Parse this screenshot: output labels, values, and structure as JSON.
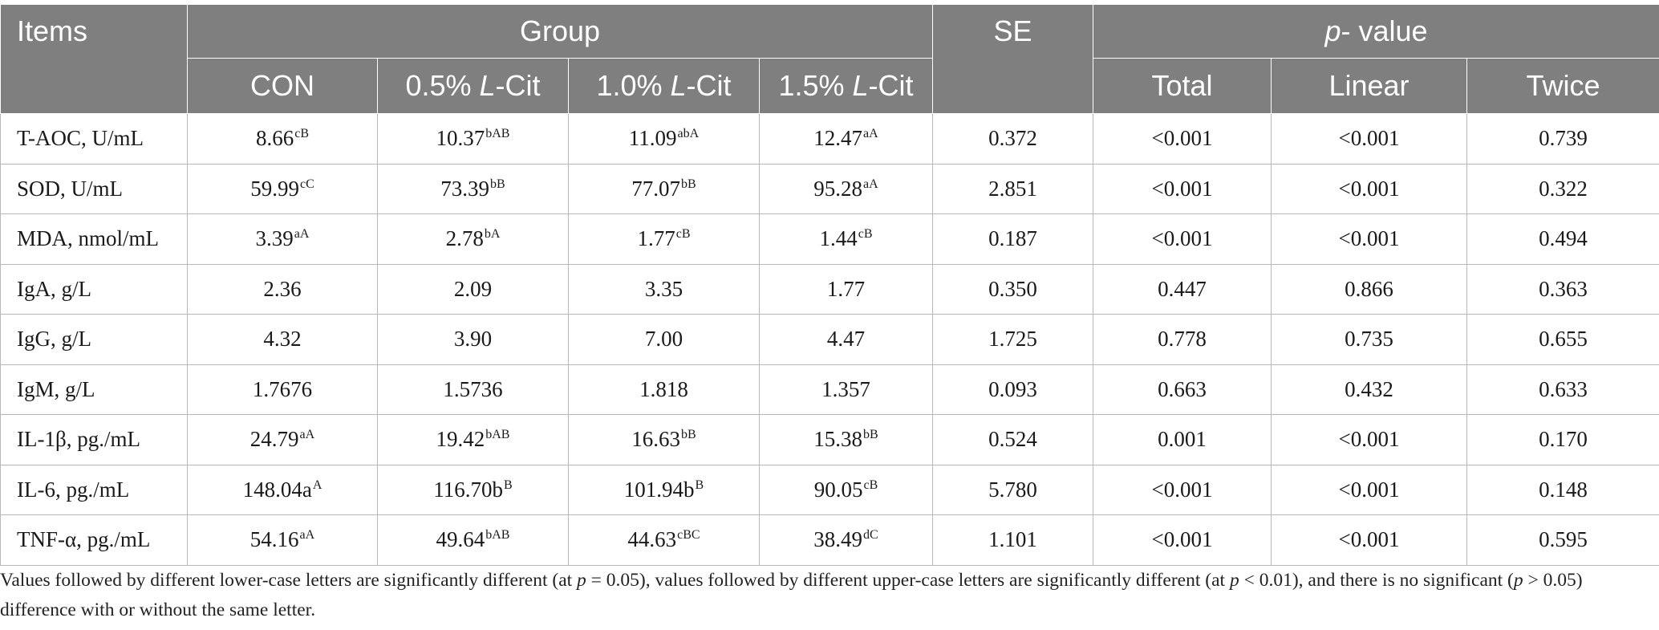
{
  "header": {
    "items": "Items",
    "group": "Group",
    "se": "SE",
    "pvalue_p": "p",
    "pvalue_rest": "- value",
    "groups": [
      {
        "pre": "CON",
        "ital": "",
        "post": ""
      },
      {
        "pre": "0.5% ",
        "ital": "L",
        "post": "-Cit"
      },
      {
        "pre": "1.0% ",
        "ital": "L",
        "post": "-Cit"
      },
      {
        "pre": "1.5% ",
        "ital": "L",
        "post": "-Cit"
      }
    ],
    "pcols": [
      "Total",
      "Linear",
      "Twice"
    ]
  },
  "rows": [
    {
      "label": "T-AOC, U/mL",
      "cells": [
        {
          "v": "8.66",
          "s": "cB"
        },
        {
          "v": "10.37",
          "s": "bAB"
        },
        {
          "v": "11.09",
          "s": "abA"
        },
        {
          "v": "12.47",
          "s": "aA"
        }
      ],
      "se": "0.372",
      "total": "<0.001",
      "linear": "<0.001",
      "twice": "0.739"
    },
    {
      "label": "SOD, U/mL",
      "cells": [
        {
          "v": "59.99",
          "s": "cC"
        },
        {
          "v": "73.39",
          "s": "bB"
        },
        {
          "v": "77.07",
          "s": "bB"
        },
        {
          "v": "95.28",
          "s": "aA"
        }
      ],
      "se": "2.851",
      "total": "<0.001",
      "linear": "<0.001",
      "twice": "0.322"
    },
    {
      "label": "MDA, nmol/mL",
      "cells": [
        {
          "v": "3.39",
          "s": "aA"
        },
        {
          "v": "2.78",
          "s": "bA"
        },
        {
          "v": "1.77",
          "s": "cB"
        },
        {
          "v": "1.44",
          "s": "cB"
        }
      ],
      "se": "0.187",
      "total": "<0.001",
      "linear": "<0.001",
      "twice": "0.494"
    },
    {
      "label": "IgA, g/L",
      "cells": [
        {
          "v": "2.36",
          "s": ""
        },
        {
          "v": "2.09",
          "s": ""
        },
        {
          "v": "3.35",
          "s": ""
        },
        {
          "v": "1.77",
          "s": ""
        }
      ],
      "se": "0.350",
      "total": "0.447",
      "linear": "0.866",
      "twice": "0.363"
    },
    {
      "label": "IgG, g/L",
      "cells": [
        {
          "v": "4.32",
          "s": ""
        },
        {
          "v": "3.90",
          "s": ""
        },
        {
          "v": "7.00",
          "s": ""
        },
        {
          "v": "4.47",
          "s": ""
        }
      ],
      "se": "1.725",
      "total": "0.778",
      "linear": "0.735",
      "twice": "0.655"
    },
    {
      "label": "IgM, g/L",
      "cells": [
        {
          "v": "1.7676",
          "s": ""
        },
        {
          "v": "1.5736",
          "s": ""
        },
        {
          "v": "1.818",
          "s": ""
        },
        {
          "v": "1.357",
          "s": ""
        }
      ],
      "se": "0.093",
      "total": "0.663",
      "linear": "0.432",
      "twice": "0.633"
    },
    {
      "label": "IL-1β, pg./mL",
      "cells": [
        {
          "v": "24.79",
          "s": "aA"
        },
        {
          "v": "19.42",
          "s": "bAB"
        },
        {
          "v": "16.63",
          "s": "bB"
        },
        {
          "v": "15.38",
          "s": "bB"
        }
      ],
      "se": "0.524",
      "total": "0.001",
      "linear": "<0.001",
      "twice": "0.170"
    },
    {
      "label": "IL-6, pg./mL",
      "cells": [
        {
          "v": "148.04a",
          "s": "A"
        },
        {
          "v": "116.70b",
          "s": "B"
        },
        {
          "v": "101.94b",
          "s": "B"
        },
        {
          "v": "90.05",
          "s": "cB"
        }
      ],
      "se": "5.780",
      "total": "<0.001",
      "linear": "<0.001",
      "twice": "0.148"
    },
    {
      "label": "TNF-α, pg./mL",
      "cells": [
        {
          "v": "54.16",
          "s": "aA"
        },
        {
          "v": "49.64",
          "s": "bAB"
        },
        {
          "v": "44.63",
          "s": "cBC"
        },
        {
          "v": "38.49",
          "s": "dC"
        }
      ],
      "se": "1.101",
      "total": "<0.001",
      "linear": "<0.001",
      "twice": "0.595"
    }
  ],
  "note": {
    "t1": "Values followed by different lower-case letters are significantly different (at ",
    "p1": "p",
    "t2": " = 0.05), values followed by different upper-case letters are significantly different (at ",
    "p2": "p",
    "t3": " < 0.01), and there is no significant (",
    "p3": "p",
    "t4": " > 0.05) difference with or without the same letter."
  }
}
